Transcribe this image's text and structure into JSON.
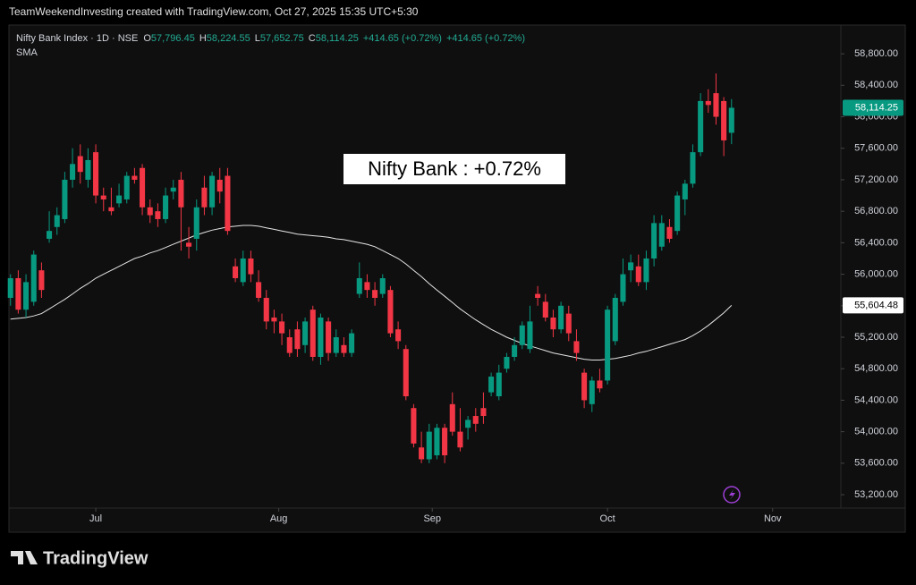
{
  "header": {
    "credit": "TeamWeekendInvesting created with TradingView.com, Oct 27, 2025 15:35 UTC+5:30"
  },
  "brand": "TradingView",
  "chart_data": {
    "type": "candlestick",
    "title": "Nifty Bank Index · 1D · NSE",
    "ohlc_legend": [
      {
        "label": "O",
        "value": 57796.45,
        "value_label": "57,796.45"
      },
      {
        "label": "H",
        "value": 58224.55,
        "value_label": "58,224.55"
      },
      {
        "label": "L",
        "value": 57652.75,
        "value_label": "57,652.75"
      },
      {
        "label": "C",
        "value": 58114.25,
        "value_label": "58,114.25"
      }
    ],
    "change_texts": [
      "+414.65 (+0.72%)",
      "+414.65 (+0.72%)"
    ],
    "annotation": "Nifty Bank : +0.72%",
    "up_color": "#089981",
    "down_color": "#f23645",
    "open": [
      55700,
      55950,
      55550,
      55650,
      56050,
      56450,
      56600,
      56700,
      57200,
      57500,
      57200,
      57550,
      57000,
      56850,
      56900,
      56950,
      57250,
      57350,
      56850,
      56800,
      56700,
      57050,
      57200,
      56400,
      56450,
      57100,
      56850,
      57200,
      57250,
      56100,
      55900,
      56200,
      55900,
      55700,
      55450,
      55400,
      55200,
      55300,
      55100,
      55550,
      54950,
      55400,
      55000,
      55100,
      55000,
      55750,
      55900,
      55800,
      55750,
      55800,
      55300,
      55050,
      54300,
      53800,
      53650,
      53700,
      54050,
      54350,
      54000,
      54050,
      54200,
      54300,
      54500,
      54450,
      54800,
      54950,
      55100,
      55050,
      55750,
      55650,
      55450,
      55300,
      55500,
      55150,
      54750,
      54350,
      54650,
      54650,
      55150,
      55650,
      56050,
      56100,
      55900,
      56200,
      56350,
      56600,
      56550,
      56950,
      57150,
      57550,
      58200,
      58300,
      58200,
      57796.45
    ],
    "high": [
      56000,
      56050,
      56000,
      56300,
      56150,
      56800,
      56850,
      57300,
      57600,
      57650,
      57600,
      57650,
      57100,
      57100,
      57150,
      57300,
      57350,
      57400,
      56950,
      56900,
      57100,
      57200,
      57300,
      56600,
      56950,
      57250,
      57300,
      57350,
      57350,
      56200,
      56300,
      56300,
      56050,
      55800,
      55550,
      55500,
      55300,
      55400,
      55450,
      55600,
      55500,
      55450,
      55300,
      55200,
      55300,
      56150,
      56000,
      55900,
      56000,
      55850,
      55400,
      55100,
      54350,
      54000,
      54100,
      54100,
      54100,
      54500,
      54300,
      54200,
      54300,
      54500,
      54750,
      54850,
      55000,
      55200,
      55400,
      55600,
      55850,
      55750,
      55550,
      55650,
      55600,
      55300,
      54800,
      54700,
      54800,
      55600,
      55750,
      56200,
      56250,
      56250,
      56300,
      56750,
      56750,
      56700,
      57050,
      57200,
      57650,
      58300,
      58350,
      58550,
      58250,
      58224.55
    ],
    "low": [
      55600,
      55500,
      55450,
      55600,
      55700,
      56400,
      56500,
      56650,
      57100,
      57150,
      57100,
      56900,
      56800,
      56750,
      56850,
      56900,
      57150,
      56750,
      56650,
      56600,
      56650,
      56950,
      56300,
      56200,
      56300,
      56750,
      56750,
      56900,
      56500,
      55900,
      55850,
      55900,
      55650,
      55300,
      55250,
      55100,
      54950,
      54950,
      55000,
      54900,
      54850,
      54900,
      54950,
      54950,
      54950,
      55700,
      55700,
      55600,
      55700,
      55200,
      55050,
      54400,
      53800,
      53600,
      53600,
      53650,
      53600,
      53950,
      53750,
      53900,
      54000,
      54100,
      54450,
      54400,
      54750,
      54900,
      55050,
      55000,
      55600,
      55400,
      55200,
      55250,
      55150,
      54900,
      54300,
      54250,
      54500,
      54600,
      55100,
      55600,
      55900,
      55850,
      55800,
      56100,
      56300,
      56400,
      56500,
      56750,
      57100,
      57500,
      58050,
      57900,
      57500,
      57652.75
    ],
    "close": [
      55950,
      55550,
      55900,
      56250,
      55800,
      56550,
      56750,
      57200,
      57400,
      57300,
      57450,
      57000,
      56950,
      56800,
      57000,
      57250,
      57200,
      56850,
      56750,
      56700,
      57000,
      57100,
      56850,
      56350,
      56850,
      56850,
      57250,
      57050,
      56550,
      55950,
      56200,
      56000,
      55700,
      55400,
      55400,
      55250,
      55000,
      55050,
      55400,
      54950,
      55450,
      55000,
      55200,
      55000,
      55250,
      55950,
      55800,
      55700,
      55950,
      55250,
      55150,
      54450,
      53850,
      53650,
      54000,
      54050,
      53700,
      54000,
      53800,
      54150,
      54100,
      54200,
      54700,
      54750,
      54950,
      55100,
      55350,
      55400,
      55700,
      55450,
      55300,
      55600,
      55250,
      55000,
      54400,
      54650,
      54550,
      55550,
      55700,
      56000,
      56150,
      55900,
      56200,
      56650,
      56650,
      56450,
      57000,
      57150,
      57550,
      58200,
      58150,
      58000,
      57700,
      58114.25
    ],
    "last_price_label": "58,114.25",
    "series": [
      {
        "name": "SMA",
        "color": "#e6e6e6",
        "sma_label": "55,604.48",
        "values": [
          55430,
          55440,
          55450,
          55470,
          55500,
          55560,
          55620,
          55680,
          55750,
          55820,
          55880,
          55950,
          56000,
          56050,
          56100,
          56150,
          56200,
          56230,
          56270,
          56300,
          56340,
          56380,
          56420,
          56460,
          56500,
          56530,
          56560,
          56580,
          56600,
          56610,
          56620,
          56620,
          56610,
          56590,
          56570,
          56550,
          56530,
          56510,
          56500,
          56490,
          56480,
          56470,
          56450,
          56440,
          56420,
          56400,
          56380,
          56350,
          56300,
          56250,
          56200,
          56130,
          56050,
          55970,
          55880,
          55800,
          55720,
          55640,
          55560,
          55490,
          55420,
          55360,
          55300,
          55250,
          55200,
          55160,
          55120,
          55090,
          55060,
          55030,
          55000,
          54980,
          54960,
          54940,
          54920,
          54910,
          54910,
          54920,
          54930,
          54950,
          54970,
          55000,
          55020,
          55050,
          55080,
          55110,
          55140,
          55170,
          55220,
          55280,
          55350,
          55430,
          55510,
          55604.48
        ]
      }
    ],
    "ylim": [
      53030,
      59165
    ],
    "yticks": [
      {
        "value": 53200,
        "label": "53,200.00"
      },
      {
        "value": 53600,
        "label": "53,600.00"
      },
      {
        "value": 54000,
        "label": "54,000.00"
      },
      {
        "value": 54400,
        "label": "54,400.00"
      },
      {
        "value": 54800,
        "label": "54,800.00"
      },
      {
        "value": 55200,
        "label": "55,200.00"
      },
      {
        "value": 55600,
        "label": "55,600.00"
      },
      {
        "value": 56000,
        "label": "56,000.00"
      },
      {
        "value": 56400,
        "label": "56,400.00"
      },
      {
        "value": 56800,
        "label": "56,800.00"
      },
      {
        "value": 57200,
        "label": "57,200.00"
      },
      {
        "value": 57600,
        "label": "57,600.00"
      },
      {
        "value": 58000,
        "label": "58,000.00"
      },
      {
        "value": 58400,
        "label": "58,400.00"
      },
      {
        "value": 58800,
        "label": "58,800.00"
      }
    ],
    "xlim": [
      -0.2,
      107.1
    ],
    "xticks": [
      {
        "value": 11,
        "label": "Jul"
      },
      {
        "value": 34.6,
        "label": "Aug"
      },
      {
        "value": 54.4,
        "label": "Sep"
      },
      {
        "value": 77,
        "label": "Oct"
      },
      {
        "value": 98.3,
        "label": "Nov"
      }
    ]
  }
}
